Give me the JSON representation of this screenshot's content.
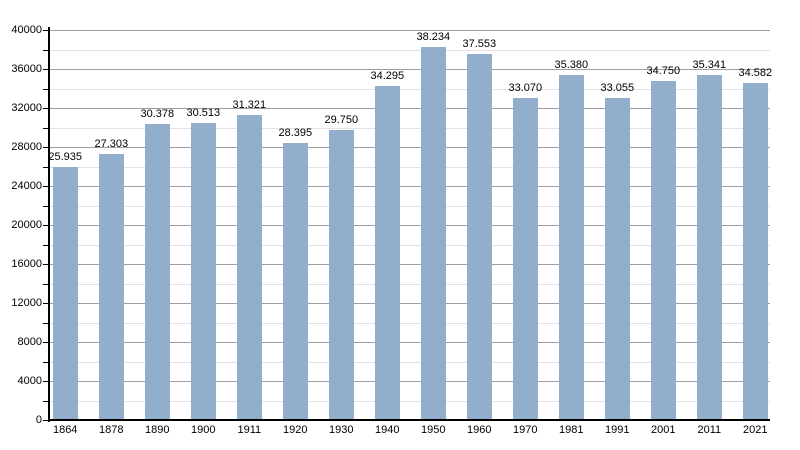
{
  "chart_data": {
    "type": "bar",
    "title": "",
    "xlabel": "",
    "ylabel": "",
    "categories": [
      "1864",
      "1878",
      "1890",
      "1900",
      "1911",
      "1920",
      "1930",
      "1940",
      "1950",
      "1960",
      "1970",
      "1981",
      "1991",
      "2001",
      "2011",
      "2021"
    ],
    "values": [
      25935,
      27303,
      30378,
      30513,
      31321,
      28395,
      29750,
      34295,
      38234,
      37553,
      33070,
      35380,
      33055,
      34750,
      35341,
      34582
    ],
    "value_labels": [
      "25.935",
      "27.303",
      "30.378",
      "30.513",
      "31.321",
      "28.395",
      "29.750",
      "34.295",
      "38.234",
      "37.553",
      "33.070",
      "35.380",
      "33.055",
      "34.750",
      "35.341",
      "34.582"
    ],
    "ylim": [
      0,
      40000
    ],
    "y_major_step": 4000,
    "y_minor_step": 2000,
    "y_tick_labels": [
      "0",
      "4000",
      "8000",
      "12000",
      "16000",
      "20000",
      "24000",
      "28000",
      "32000",
      "36000",
      "40000"
    ],
    "grid": true,
    "legend": "none",
    "colors": {
      "bar": "#92aecd",
      "major_gridline": "#9f9f9f",
      "minor_gridline": "#e2e2e2",
      "axis": "#000000",
      "text": "#000000",
      "background": "#ffffff"
    }
  }
}
